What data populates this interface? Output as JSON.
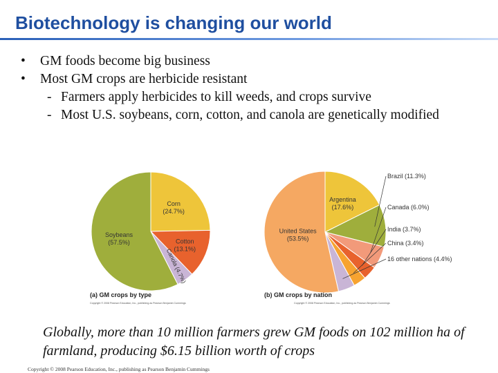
{
  "slide": {
    "title": "Biotechnology is changing our world"
  },
  "bullets": [
    {
      "text": "GM foods become big business",
      "level": 1
    },
    {
      "text": "Most GM crops are herbicide resistant",
      "level": 1
    },
    {
      "text": "Farmers apply herbicides to kill weeds, and crops survive",
      "level": 2
    },
    {
      "text": "Most U.S. soybeans, corn, cotton, and canola are genetically modified",
      "level": 2
    }
  ],
  "bullet_marks": {
    "level1": "•",
    "level2": "-"
  },
  "chart_data": [
    {
      "type": "pie",
      "title": "(a) GM crops by type",
      "credit": "Copyright © 2008 Pearson Education, Inc., publishing as Pearson Benjamin Cummings",
      "slices": [
        {
          "label": "Corn",
          "pct_label": "(24.7%)",
          "value": 24.7,
          "color": "#eec53a"
        },
        {
          "label": "Cotton",
          "pct_label": "(13.1%)",
          "value": 13.1,
          "color": "#e8622d"
        },
        {
          "label": "Canola",
          "pct_label": "(4.7%)",
          "value": 4.7,
          "color": "#c9b5d6"
        },
        {
          "label": "Soybeans",
          "pct_label": "(57.5%)",
          "value": 57.5,
          "color": "#9fae3c"
        }
      ]
    },
    {
      "type": "pie",
      "title": "(b) GM crops by nation",
      "credit": "Copyright © 2008 Pearson Education, Inc., publishing as Pearson Benjamin Cummings",
      "slices": [
        {
          "label": "Argentina",
          "pct_label": "(17.6%)",
          "value": 17.6,
          "color": "#eec53a"
        },
        {
          "label": "Brazil (11.3%)",
          "value": 11.3,
          "color": "#9fae3c"
        },
        {
          "label": "Canada (6.0%)",
          "value": 6.0,
          "color": "#f29a7a"
        },
        {
          "label": "India (3.7%)",
          "value": 3.7,
          "color": "#e8622d"
        },
        {
          "label": "China (3.4%)",
          "value": 3.4,
          "color": "#f7a330"
        },
        {
          "label": "16 other nations (4.4%)",
          "value": 4.4,
          "color": "#c9b5d6"
        },
        {
          "label": "United States",
          "pct_label": "(53.5%)",
          "value": 53.5,
          "color": "#f5a862"
        }
      ]
    }
  ],
  "caption": "Globally, more than 10 million farmers grew GM foods on 102 million ha of farmland, producing $6.15 billion worth of crops",
  "footer": {
    "copyright": "Copyright © 2008 Pearson Education, Inc., publishing as Pearson Benjamin Cummings"
  }
}
